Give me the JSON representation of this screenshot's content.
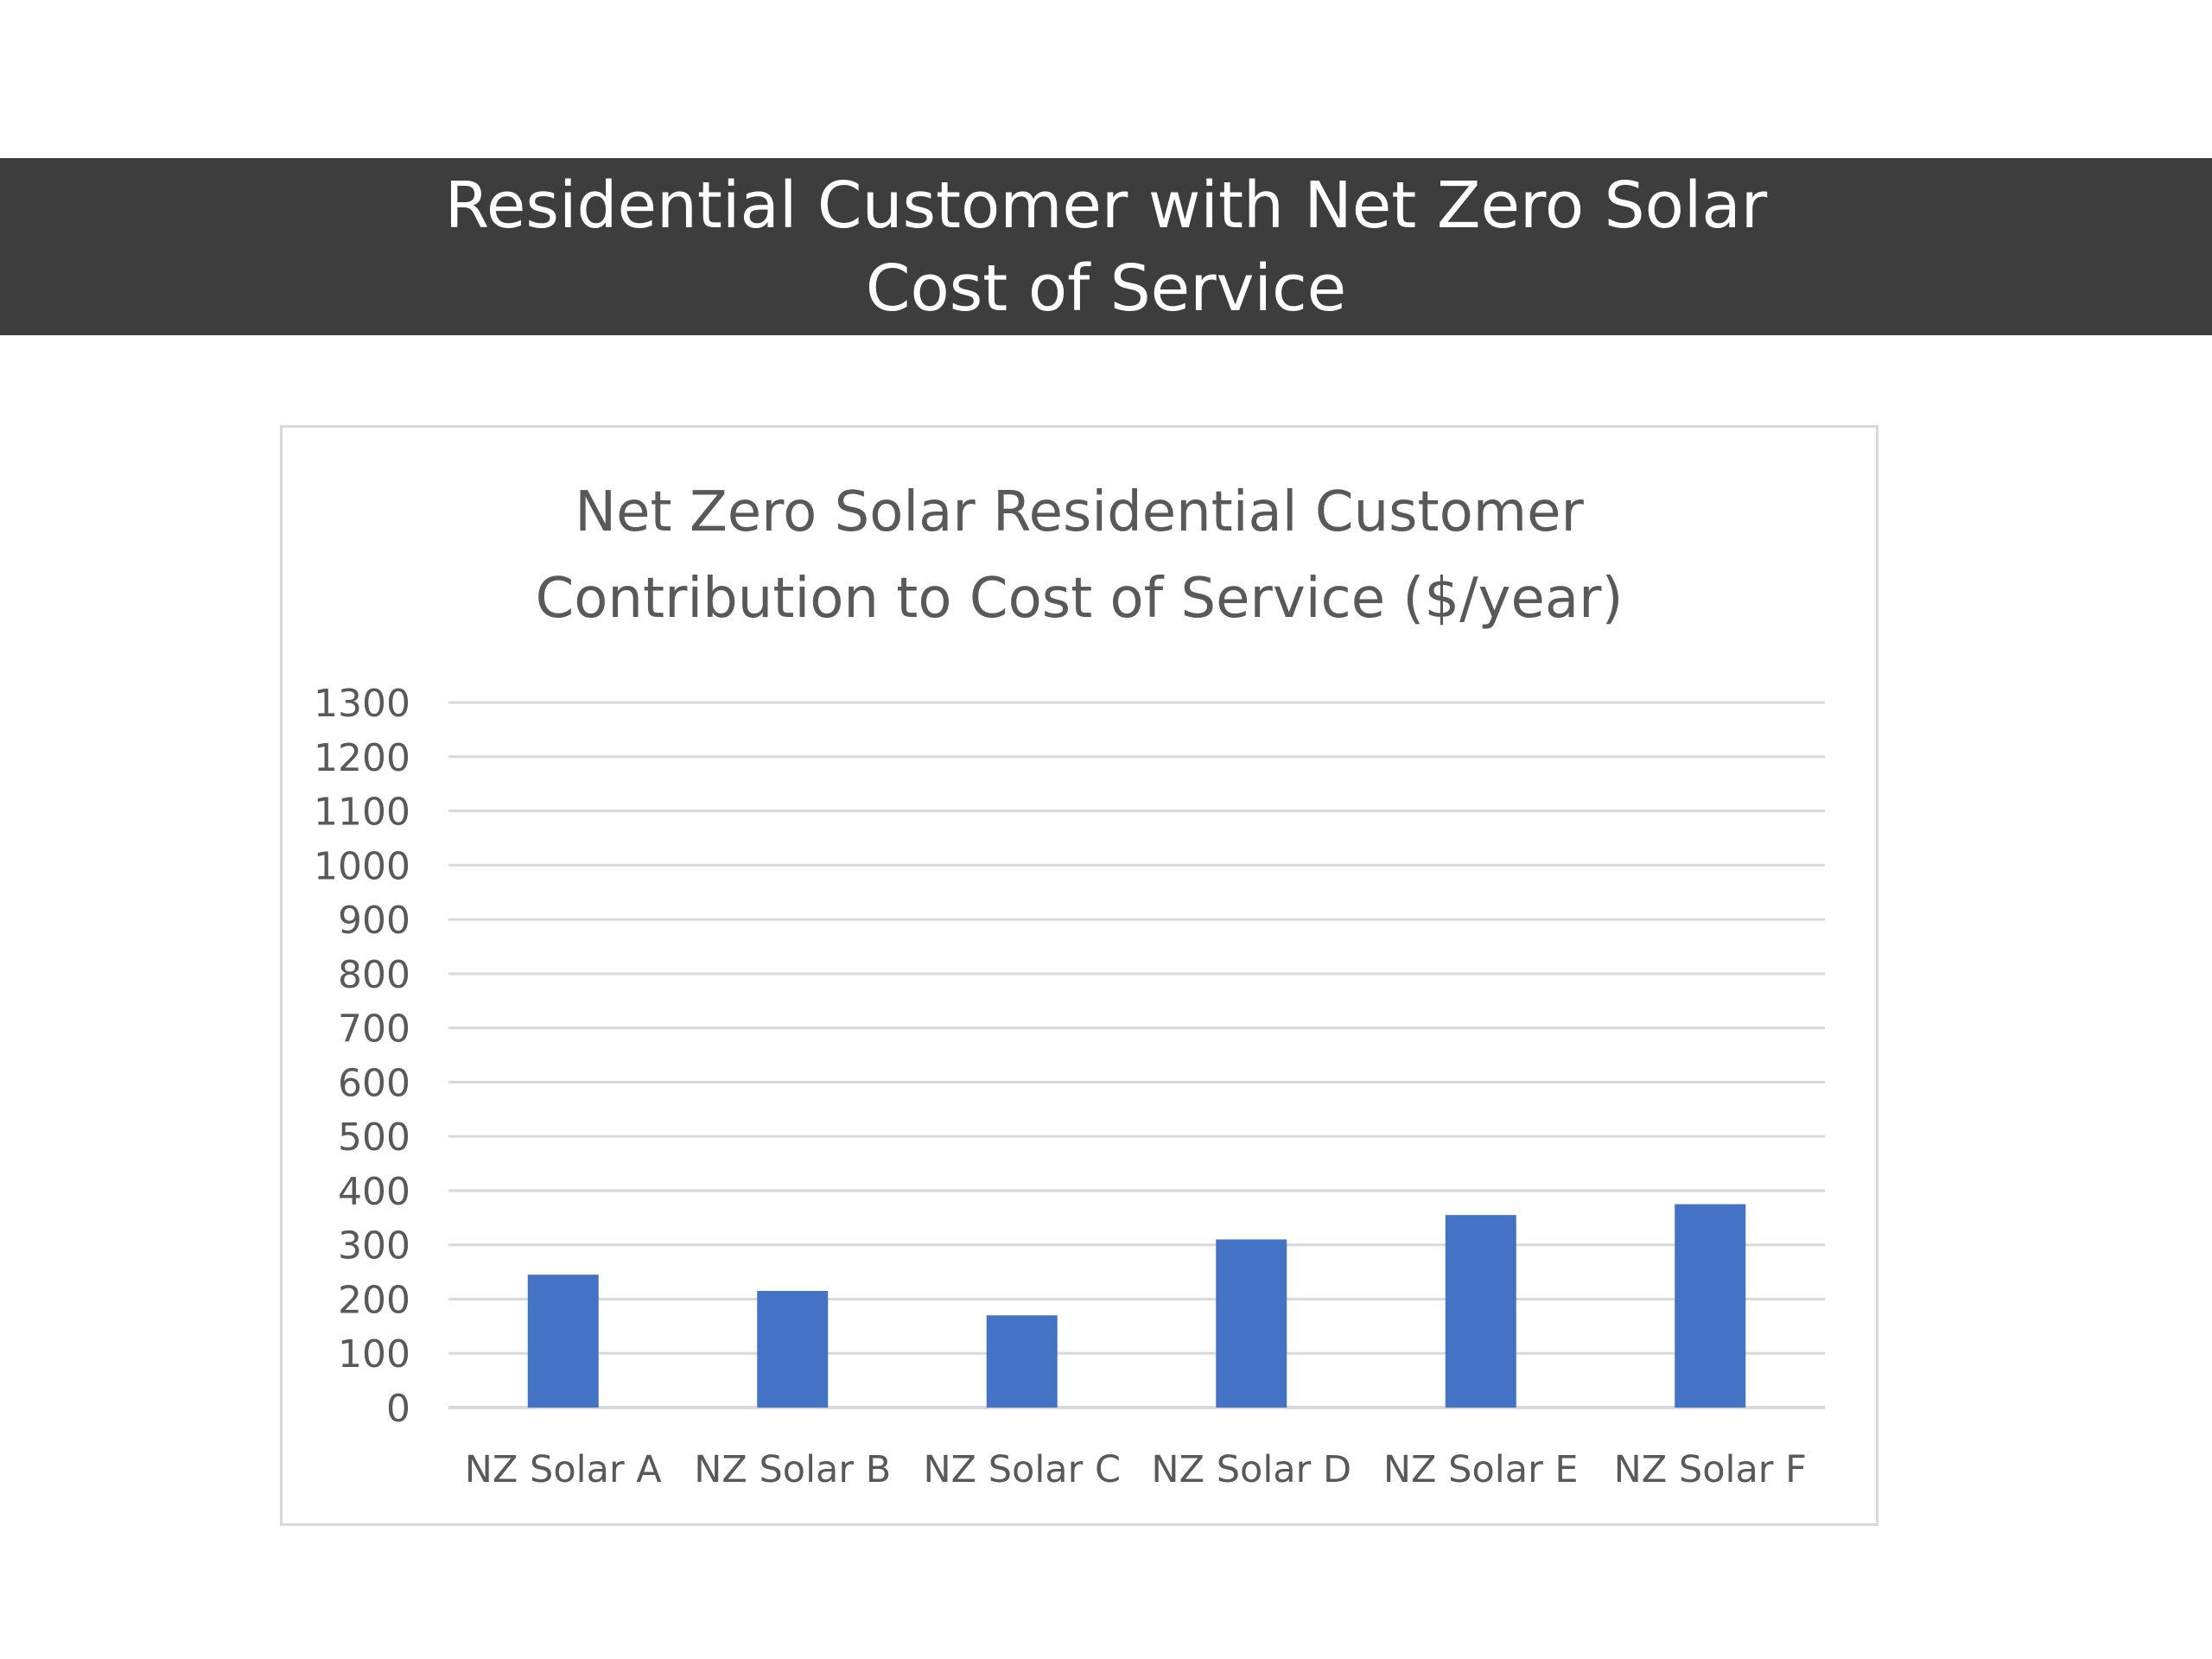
{
  "slide": {
    "title_line1": "Residential Customer with Net Zero Solar",
    "title_line2": "Cost of Service"
  },
  "chart_data": {
    "type": "bar",
    "title_line1": "Net Zero Solar Residential Customer",
    "title_line2": "Contribution to Cost of Service ($/year)",
    "categories": [
      "NZ Solar A",
      "NZ Solar B",
      "NZ Solar C",
      "NZ Solar D",
      "NZ Solar E",
      "NZ Solar F"
    ],
    "values": [
      245,
      215,
      170,
      310,
      355,
      375
    ],
    "ylim": [
      0,
      1300
    ],
    "yticks": [
      0,
      100,
      200,
      300,
      400,
      500,
      600,
      700,
      800,
      900,
      1000,
      1100,
      1200,
      1300
    ],
    "grid": true,
    "bar_color": "#4472c4",
    "grid_color": "#d9d9d9"
  }
}
